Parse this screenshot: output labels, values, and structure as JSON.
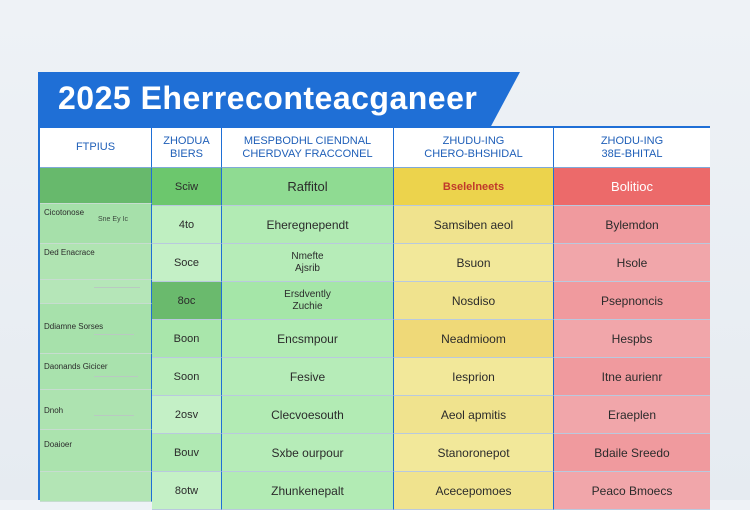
{
  "title": "2025 Eherreconteacganeer",
  "headers": [
    [
      "FTPIUS"
    ],
    [
      "ZHODUA",
      "BIERS"
    ],
    [
      "MESPBODHL CIENDNAL",
      "CHERDVAY FRACCONEL"
    ],
    [
      "ZHUDU-ING",
      "CHERO-BHSHIDAL"
    ],
    [
      "ZHODU-ING",
      "38E-BHITAL"
    ]
  ],
  "left_rows": [
    {
      "label": "",
      "sub": ""
    },
    {
      "label": "Cicotonose",
      "sub": "Sne Ey Ic"
    },
    {
      "label": "Ded Enacrace",
      "sub": ""
    },
    {
      "label": "",
      "sub": ""
    },
    {
      "label": "Ddiamne Sorses",
      "sub": ""
    },
    {
      "label": "Daonands Gicicer",
      "sub": ""
    },
    {
      "label": "Dnoh",
      "sub": ""
    },
    {
      "label": "Doaioer",
      "sub": ""
    },
    {
      "label": "",
      "sub": ""
    }
  ],
  "col1": [
    "Sciw",
    "4to",
    "Soce",
    "8oc",
    "Boon",
    "Soon",
    "2osv",
    "Bouv",
    "8otw"
  ],
  "col2": [
    "Raffitol",
    "Eheregnependt",
    "Nmefte Ajsrib",
    "Ersdvently Zuchie",
    "Encsmpour",
    "Fesive",
    "Clecvoesouth",
    "Sxbe ourpour",
    "Zhunkenepalt"
  ],
  "col3": [
    "Bselelneets",
    "Samsiben aeol",
    "Bsuon",
    "Nosdiso",
    "Neadmioom",
    "Iesprion",
    "Aeol apmitis",
    "Stanoronepot",
    "Acecepomoes"
  ],
  "col4": [
    "Bolitioc",
    "Bylemdon",
    "Hsole",
    "Psepnoncis",
    "Hespbs",
    "Itne aurienr",
    "Eraeplen",
    "Bdaile Sreedo",
    "Peaco Bmoecs"
  ],
  "colors": {
    "accent": "#1f6fd6",
    "green_top": "#6cc76d",
    "green": "#9ae29d",
    "green_light": "#bfefc1",
    "yellow_top": "#ecd34c",
    "yellow": "#f2ea9a",
    "red_top": "#ec6a6a",
    "red": "#f0a7ab"
  }
}
